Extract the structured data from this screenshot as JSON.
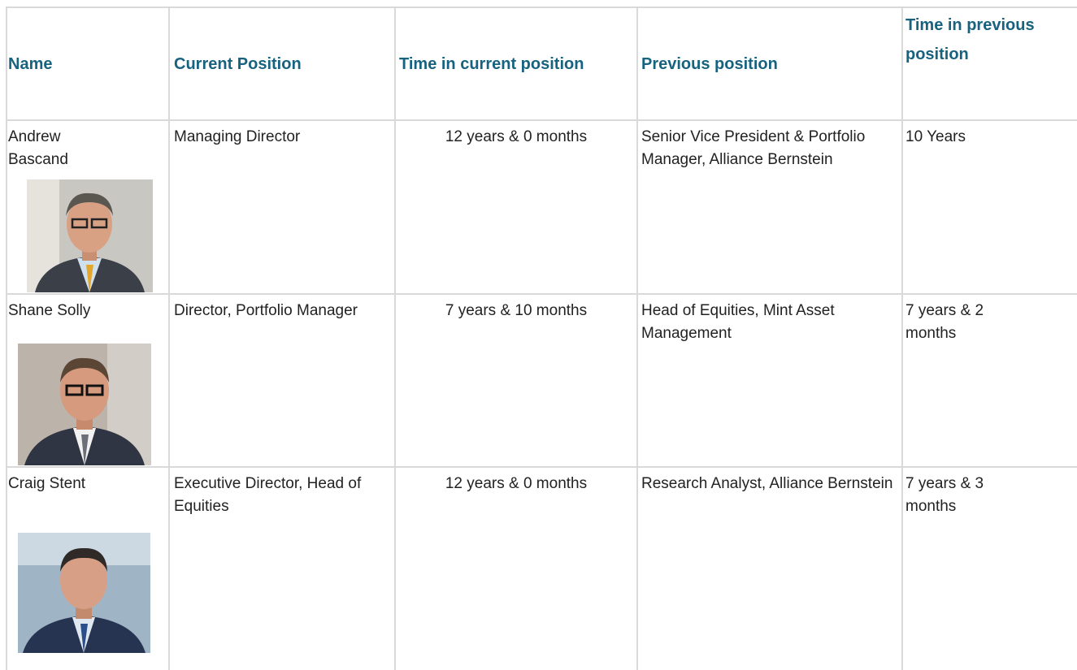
{
  "table": {
    "headers": [
      "Name",
      "Current Position",
      "Time in current position",
      "Previous position",
      "Time in previous position"
    ],
    "rows": [
      [
        "Andrew Bascand",
        "Managing Director",
        "12 years & 0 months",
        "Senior Vice President & Portfolio Manager, Alliance Bernstein",
        "10 Years"
      ],
      [
        "Shane Solly",
        "Director, Portfolio Manager",
        "7 years & 10 months",
        "Head of Equities, Mint Asset Management",
        "7 years & 2 months"
      ],
      [
        "Craig Stent",
        "Executive Director, Head of Equities",
        "12 years & 0 months",
        "Research Analyst, Alliance Bernstein",
        "7 years & 3 months"
      ]
    ]
  }
}
